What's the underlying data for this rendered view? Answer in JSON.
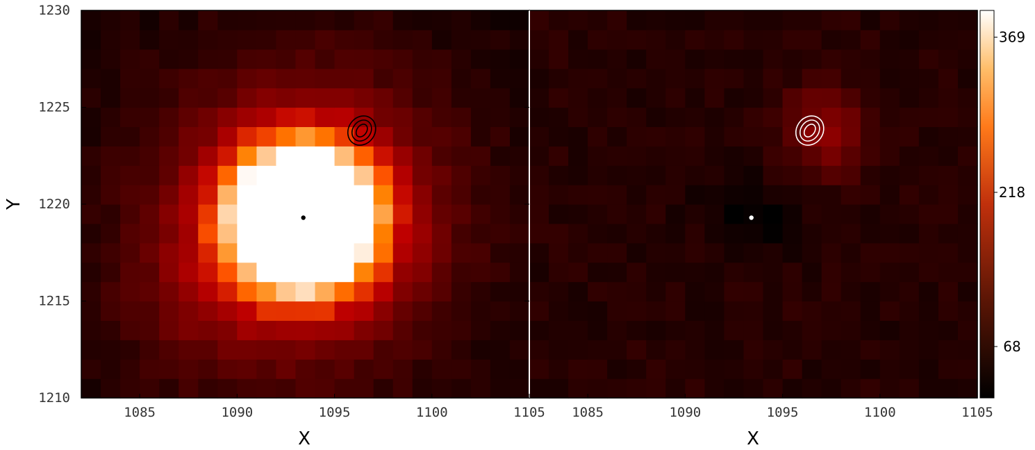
{
  "chart_data": {
    "type": "heatmap",
    "colormap": "gist_heat",
    "shared_colorbar": {
      "ticks": [
        68,
        218,
        369
      ],
      "tick_labels": [
        "68",
        "218",
        "369"
      ],
      "range": [
        18,
        395
      ]
    },
    "panels": [
      {
        "name": "",
        "xlabel": "X",
        "ylabel": "Y",
        "xlim": [
          1082,
          1105
        ],
        "ylim": [
          1210,
          1230
        ],
        "xticks": [
          1085,
          1090,
          1095,
          1100,
          1105
        ],
        "yticks": [
          1210,
          1215,
          1220,
          1225,
          1230
        ],
        "pixel_grid": {
          "x_start": 1082,
          "x_end": 1105,
          "y_start": 1210,
          "y_end": 1230,
          "cols": 23,
          "rows": 20
        },
        "peak_center": [
          1093.4,
          1219.3
        ],
        "peak_value": 395,
        "marker": {
          "x": 1093.4,
          "y": 1219.3,
          "color": "#000000"
        },
        "contours": {
          "x": 1096.4,
          "y": 1223.8,
          "levels": 3,
          "color": "#000000"
        }
      },
      {
        "name": "",
        "xlabel": "X",
        "ylabel": "",
        "xlim": [
          1082,
          1105
        ],
        "ylim": [
          1210,
          1230
        ],
        "xticks": [
          1085,
          1090,
          1095,
          1100,
          1105
        ],
        "xtick_labels": [
          "1085",
          "1090",
          "1095",
          "1100",
          "1105"
        ],
        "yticks": [],
        "pixel_grid": {
          "x_start": 1082,
          "x_end": 1105,
          "y_start": 1210,
          "y_end": 1230,
          "cols": 23,
          "rows": 20
        },
        "blob_center": [
          1097.2,
          1223.8
        ],
        "blob_value": 150,
        "residual_dip_center": [
          1093.2,
          1219.4
        ],
        "marker": {
          "x": 1093.4,
          "y": 1219.3,
          "color": "#ffffff"
        },
        "contours": {
          "x": 1096.4,
          "y": 1223.8,
          "levels": 3,
          "color": "#ffffff"
        }
      }
    ]
  }
}
